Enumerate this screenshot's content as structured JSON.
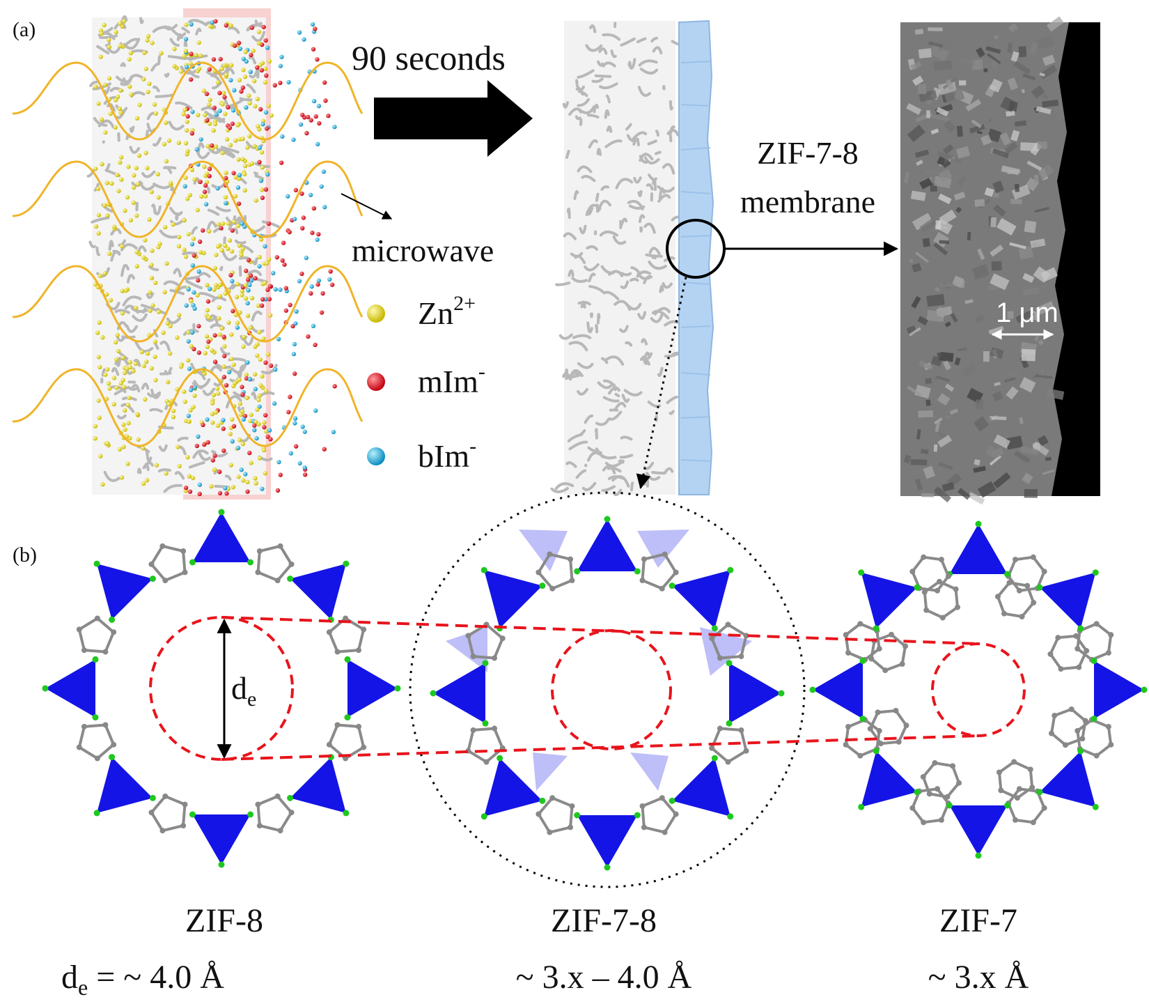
{
  "panel_a": {
    "label": "(a)",
    "arrow_text": "90 seconds",
    "microwave_label": "microwave",
    "legend": [
      {
        "text": "Zn",
        "sup": "2+",
        "color": "#e8dc1e"
      },
      {
        "text": "mIm",
        "sup": "-",
        "color": "#e8141c"
      },
      {
        "text": "bIm",
        "sup": "-",
        "color": "#28b4dc"
      }
    ],
    "membrane_label_line1": "ZIF-7-8",
    "membrane_label_line2": "membrane",
    "scale_bar": "1 μm"
  },
  "panel_b": {
    "label": "(b)",
    "pore_symbol": "d",
    "pore_symbol_sub": "e",
    "structures": [
      {
        "name": "ZIF-8",
        "size_prefix": "d",
        "size_prefix_sub": "e",
        "size_value": " =  ~ 4.0 Å"
      },
      {
        "name": "ZIF-7-8",
        "size_value": "~ 3.x – 4.0 Å"
      },
      {
        "name": "ZIF-7",
        "size_value": "~ 3.x Å"
      }
    ]
  },
  "colors": {
    "tetrahedra": "#1414e6",
    "zn_nodes": "#1ec81e",
    "carbon": "#808080",
    "pore_outline": "#e8141c",
    "membrane_layer": "#aecdf0",
    "highlight_band": "#f5c0c0",
    "microwave_wave": "#f0b428"
  }
}
